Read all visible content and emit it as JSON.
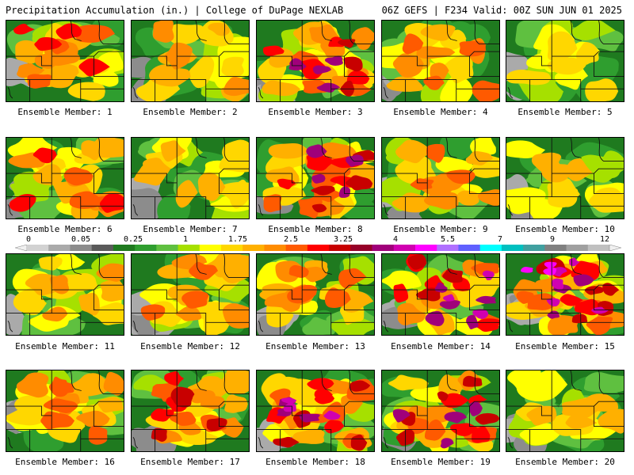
{
  "header": {
    "left": "Precipitation Accumulation (in.) | College of DuPage NEXLAB",
    "right": "06Z GEFS | F234 Valid: 00Z SUN JUN 01 2025"
  },
  "colors": {
    "scale": [
      "#d2d2d2",
      "#aaaaaa",
      "#8c8c8c",
      "#5a5a5a",
      "#1f7a1f",
      "#2f9e2f",
      "#5fc040",
      "#a6e000",
      "#ffff00",
      "#ffd700",
      "#ffb000",
      "#ff8c00",
      "#ff5a00",
      "#ff0000",
      "#c80000",
      "#960028",
      "#a0007a",
      "#d000b0",
      "#ff00ff",
      "#b070ff",
      "#6060ff",
      "#00ffff",
      "#00c0c0",
      "#40a0a0",
      "#808080",
      "#a0a0a0",
      "#c0c0c0"
    ]
  },
  "colorbar": {
    "labels": [
      "0",
      "0.05",
      "0.25",
      "1",
      "1.75",
      "2.5",
      "3.25",
      "4",
      "5.5",
      "7",
      "9",
      "12"
    ]
  },
  "panels": [
    {
      "label": "Ensemble Member: 1",
      "intensity": 0.65
    },
    {
      "label": "Ensemble Member: 2",
      "intensity": 0.5
    },
    {
      "label": "Ensemble Member: 3",
      "intensity": 0.75
    },
    {
      "label": "Ensemble Member: 4",
      "intensity": 0.55
    },
    {
      "label": "Ensemble Member: 5",
      "intensity": 0.35
    },
    {
      "label": "Ensemble Member: 6",
      "intensity": 0.65
    },
    {
      "label": "Ensemble Member: 7",
      "intensity": 0.4
    },
    {
      "label": "Ensemble Member: 8",
      "intensity": 0.75
    },
    {
      "label": "Ensemble Member: 9",
      "intensity": 0.55
    },
    {
      "label": "Ensemble Member: 10",
      "intensity": 0.45
    },
    {
      "label": "Ensemble Member: 11",
      "intensity": 0.5
    },
    {
      "label": "Ensemble Member: 12",
      "intensity": 0.6
    },
    {
      "label": "Ensemble Member: 13",
      "intensity": 0.6
    },
    {
      "label": "Ensemble Member: 14",
      "intensity": 0.85
    },
    {
      "label": "Ensemble Member: 15",
      "intensity": 0.9
    },
    {
      "label": "Ensemble Member: 16",
      "intensity": 0.6
    },
    {
      "label": "Ensemble Member: 17",
      "intensity": 0.7
    },
    {
      "label": "Ensemble Member: 18",
      "intensity": 0.85
    },
    {
      "label": "Ensemble Member: 19",
      "intensity": 0.8
    },
    {
      "label": "Ensemble Member: 20",
      "intensity": 0.4
    }
  ]
}
